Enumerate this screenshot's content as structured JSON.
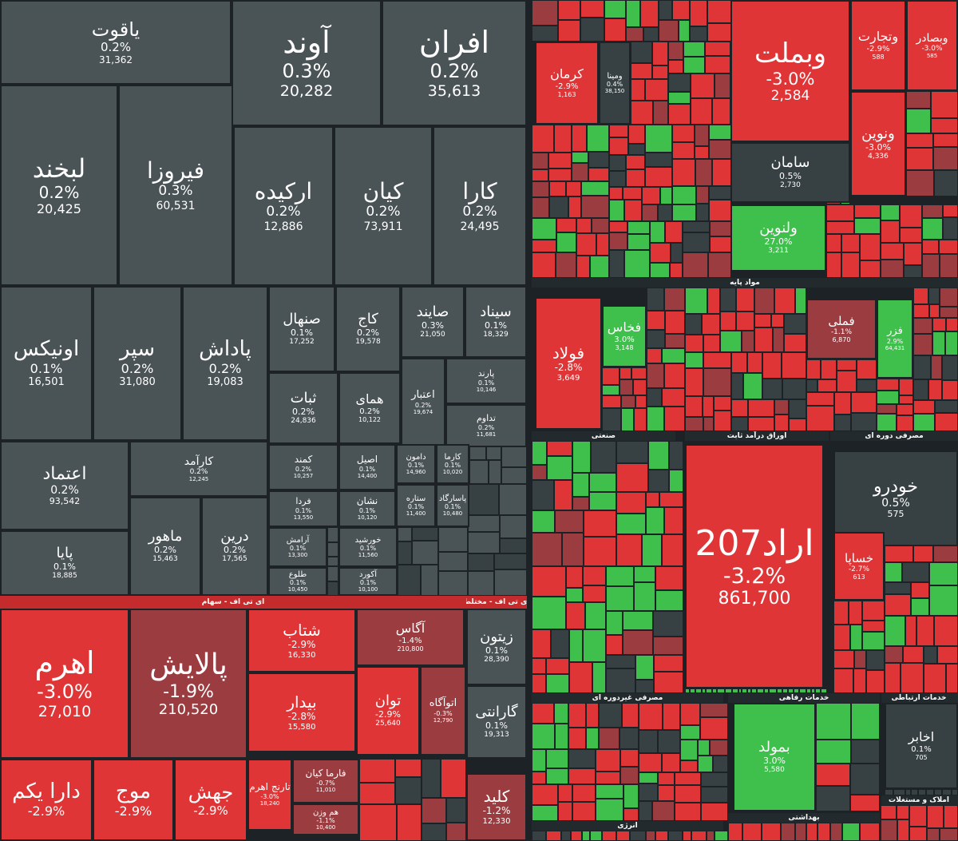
{
  "colors": {
    "neutral": "#4a5356",
    "red": "#e03536",
    "red_dark": "#d33435",
    "maroon": "#9b3c40",
    "green": "#3fbf4b",
    "green_dark": "#2f9a3a",
    "dark": "#374042",
    "background": "#1c2226",
    "divider": "#ffffff",
    "header_red": "#c42b2c",
    "header_dark": "#222a2d"
  },
  "tiles": [
    {
      "name": "یاقوت",
      "change": "0.2%",
      "value": "31,362",
      "c": "neutral"
    },
    {
      "name": "آوند",
      "change": "0.3%",
      "value": "20,282",
      "c": "neutral"
    },
    {
      "name": "افران",
      "change": "0.2%",
      "value": "35,613",
      "c": "neutral"
    },
    {
      "name": "لبخند",
      "change": "0.2%",
      "value": "20,425",
      "c": "neutral"
    },
    {
      "name": "فیروزا",
      "change": "0.3%",
      "value": "60,531",
      "c": "neutral"
    },
    {
      "name": "ارکیده",
      "change": "0.2%",
      "value": "12,886",
      "c": "neutral"
    },
    {
      "name": "کیان",
      "change": "0.2%",
      "value": "73,911",
      "c": "neutral"
    },
    {
      "name": "کارا",
      "change": "0.2%",
      "value": "24,495",
      "c": "neutral"
    },
    {
      "name": "اونیکس",
      "change": "0.1%",
      "value": "16,501",
      "c": "neutral"
    },
    {
      "name": "سپر",
      "change": "0.2%",
      "value": "31,080",
      "c": "neutral"
    },
    {
      "name": "پاداش",
      "change": "0.2%",
      "value": "19,083",
      "c": "neutral"
    },
    {
      "name": "صنهال",
      "change": "0.1%",
      "value": "17,252",
      "c": "neutral"
    },
    {
      "name": "کاج",
      "change": "0.2%",
      "value": "19,578",
      "c": "neutral"
    },
    {
      "name": "صایند",
      "change": "0.3%",
      "value": "21,050",
      "c": "neutral"
    },
    {
      "name": "سیناد",
      "change": "0.1%",
      "value": "18,329",
      "c": "neutral"
    },
    {
      "name": "ثبات",
      "change": "0.2%",
      "value": "24,836",
      "c": "neutral"
    },
    {
      "name": "همای",
      "change": "0.2%",
      "value": "10,122",
      "c": "neutral"
    },
    {
      "name": "اعتبار",
      "change": "0.2%",
      "value": "19,674",
      "c": "neutral"
    },
    {
      "name": "پارند",
      "change": "0.1%",
      "value": "10,146",
      "c": "neutral"
    },
    {
      "name": "تداوم",
      "change": "0.2%",
      "value": "11,681",
      "c": "neutral"
    },
    {
      "name": "اعتماد",
      "change": "0.2%",
      "value": "93,542",
      "c": "neutral"
    },
    {
      "name": "کارآمد",
      "change": "0.2%",
      "value": "12,245",
      "c": "neutral"
    },
    {
      "name": "کمند",
      "change": "0.2%",
      "value": "10,257",
      "c": "neutral"
    },
    {
      "name": "اصیل",
      "change": "0.1%",
      "value": "14,400",
      "c": "neutral"
    },
    {
      "name": "دامون",
      "change": "0.1%",
      "value": "14,960",
      "c": "neutral"
    },
    {
      "name": "کارما",
      "change": "0.1%",
      "value": "10,020",
      "c": "neutral"
    },
    {
      "name": "فردا",
      "change": "0.1%",
      "value": "13,550",
      "c": "neutral"
    },
    {
      "name": "نشان",
      "change": "0.1%",
      "value": "10,120",
      "c": "neutral"
    },
    {
      "name": "ستاره",
      "change": "0.1%",
      "value": "11,400",
      "c": "neutral"
    },
    {
      "name": "پاسارگاد",
      "change": "0.1%",
      "value": "10,480",
      "c": "neutral"
    },
    {
      "name": "پایا",
      "change": "0.1%",
      "value": "18,885",
      "c": "neutral"
    },
    {
      "name": "ماهور",
      "change": "0.2%",
      "value": "15,463",
      "c": "neutral"
    },
    {
      "name": "درین",
      "change": "0.2%",
      "value": "17,565",
      "c": "neutral"
    },
    {
      "name": "آرامش",
      "change": "0.1%",
      "value": "13,300",
      "c": "neutral"
    },
    {
      "name": "خورشید",
      "change": "0.1%",
      "value": "11,560",
      "c": "neutral"
    },
    {
      "name": "طلوع",
      "change": "0.1%",
      "value": "10,450",
      "c": "neutral"
    },
    {
      "name": "آکورد",
      "change": "0.1%",
      "value": "10,100",
      "c": "neutral"
    },
    {
      "name": "اهرم",
      "change": "-3.0%",
      "value": "27,010",
      "c": "red"
    },
    {
      "name": "پالایش",
      "change": "-1.9%",
      "value": "210,520",
      "c": "maroon"
    },
    {
      "name": "شتاب",
      "change": "-2.9%",
      "value": "16,330",
      "c": "red"
    },
    {
      "name": "آگاس",
      "change": "-1.4%",
      "value": "210,800",
      "c": "maroon"
    },
    {
      "name": "زیتون",
      "change": "0.1%",
      "value": "28,390",
      "c": "neutral"
    },
    {
      "name": "بیدار",
      "change": "-2.8%",
      "value": "15,580",
      "c": "red"
    },
    {
      "name": "توان",
      "change": "-2.9%",
      "value": "25,640",
      "c": "red"
    },
    {
      "name": "اتوآگاه",
      "change": "-0.3%",
      "value": "12,790",
      "c": "maroon"
    },
    {
      "name": "گارانتی",
      "change": "0.1%",
      "value": "19,313",
      "c": "neutral"
    },
    {
      "name": "دارا یکم",
      "change": "-2.9%",
      "value": "",
      "c": "red"
    },
    {
      "name": "موج",
      "change": "-2.9%",
      "value": "",
      "c": "red"
    },
    {
      "name": "جهش",
      "change": "-2.9%",
      "value": "",
      "c": "red"
    },
    {
      "name": "تارنج اهرم",
      "change": "-3.0%",
      "value": "18,240",
      "c": "red"
    },
    {
      "name": "فارما کیان",
      "change": "-0.7%",
      "value": "11,010",
      "c": "maroon"
    },
    {
      "name": "هم وزن",
      "change": "-1.1%",
      "value": "10,400",
      "c": "maroon"
    },
    {
      "name": "کلید",
      "change": "-1.2%",
      "value": "12,330",
      "c": "maroon"
    },
    {
      "name": "وبملت",
      "change": "-3.0%",
      "value": "2,584",
      "c": "red"
    },
    {
      "name": "وتجارت",
      "change": "-2.9%",
      "value": "588",
      "c": "red"
    },
    {
      "name": "وبصادر",
      "change": "-3.0%",
      "value": "585",
      "c": "red"
    },
    {
      "name": "ونوین",
      "change": "-3.0%",
      "value": "4,336",
      "c": "red"
    },
    {
      "name": "سامان",
      "change": "0.5%",
      "value": "2,730",
      "c": "dark"
    },
    {
      "name": "کرمان",
      "change": "-2.9%",
      "value": "1,163",
      "c": "red"
    },
    {
      "name": "ومینا",
      "change": "0.4%",
      "value": "38,150",
      "c": "dark"
    },
    {
      "name": "ولنوین",
      "change": "27.0%",
      "value": "3,211",
      "c": "green"
    },
    {
      "name": "فولاد",
      "change": "-2.8%",
      "value": "3,649",
      "c": "red"
    },
    {
      "name": "فخاس",
      "change": "3.0%",
      "value": "3,148",
      "c": "green"
    },
    {
      "name": "فملی",
      "change": "-1.1%",
      "value": "6,870",
      "c": "maroon"
    },
    {
      "name": "فزر",
      "change": "2.9%",
      "value": "64,431",
      "c": "green"
    },
    {
      "name": "اراد207",
      "change": "-3.2%",
      "value": "861,700",
      "c": "red"
    },
    {
      "name": "خودرو",
      "change": "0.5%",
      "value": "575",
      "c": "dark"
    },
    {
      "name": "خساپا",
      "change": "-2.7%",
      "value": "613",
      "c": "red"
    },
    {
      "name": "بمولد",
      "change": "3.0%",
      "value": "5,580",
      "c": "green"
    },
    {
      "name": "اخابر",
      "change": "0.1%",
      "value": "705",
      "c": "dark"
    }
  ],
  "headers": [
    "ای تی اف - سهام",
    "ای تی اف - مختلط",
    "مواد پایه",
    "صنعتی",
    "اوراق درآمد ثابت",
    "مصرفی دوره ای",
    "مصرفی غیردوره ای",
    "خدمات رفاهی",
    "خدمات ارتباطی",
    "انرژی",
    "بهداشتی",
    "املاک و مستغلات"
  ]
}
